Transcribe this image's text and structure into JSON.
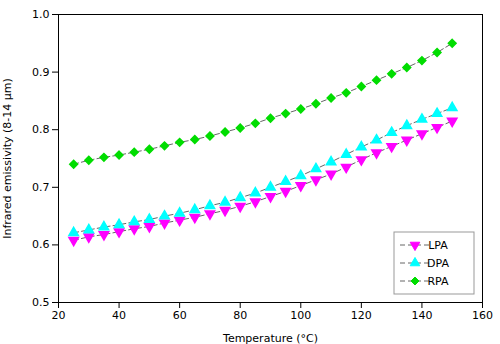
{
  "chart_data": {
    "type": "line",
    "xlabel": "Temperature (°C)",
    "ylabel": "Infrared emissivity (8-14 μm)",
    "xlim": [
      20,
      160
    ],
    "ylim": [
      0.5,
      1.0
    ],
    "xticks": [
      20,
      40,
      60,
      80,
      100,
      120,
      140,
      160
    ],
    "yticks": [
      0.5,
      0.6,
      0.7,
      0.8,
      0.9,
      {
        "value": 1.0,
        "label": "1.0"
      }
    ],
    "x": [
      25,
      30,
      35,
      40,
      45,
      50,
      55,
      60,
      65,
      70,
      75,
      80,
      85,
      90,
      95,
      100,
      105,
      110,
      115,
      120,
      125,
      130,
      135,
      140,
      145,
      150
    ],
    "color": "#666666",
    "line_style": "dashed",
    "grid": false,
    "legend": "lower right",
    "series": [
      {
        "name": "LPA",
        "color": "#FF00FF",
        "marker": "triangle_down",
        "values": [
          0.608,
          0.614,
          0.618,
          0.623,
          0.628,
          0.632,
          0.638,
          0.643,
          0.648,
          0.654,
          0.66,
          0.667,
          0.675,
          0.684,
          0.693,
          0.703,
          0.713,
          0.723,
          0.735,
          0.748,
          0.76,
          0.771,
          0.782,
          0.793,
          0.804,
          0.815
        ]
      },
      {
        "name": "DPA",
        "color": "#00FFFF",
        "marker": "triangle_up",
        "values": [
          0.621,
          0.626,
          0.631,
          0.635,
          0.64,
          0.644,
          0.65,
          0.655,
          0.661,
          0.668,
          0.674,
          0.682,
          0.69,
          0.7,
          0.71,
          0.72,
          0.732,
          0.744,
          0.757,
          0.77,
          0.782,
          0.795,
          0.807,
          0.818,
          0.828,
          0.838
        ]
      },
      {
        "name": "RPA",
        "color": "#00DD00",
        "marker": "diamond",
        "values": [
          0.74,
          0.747,
          0.752,
          0.756,
          0.761,
          0.766,
          0.772,
          0.778,
          0.783,
          0.789,
          0.796,
          0.803,
          0.811,
          0.82,
          0.828,
          0.836,
          0.845,
          0.855,
          0.864,
          0.875,
          0.886,
          0.897,
          0.908,
          0.92,
          0.934,
          0.95
        ]
      }
    ]
  }
}
